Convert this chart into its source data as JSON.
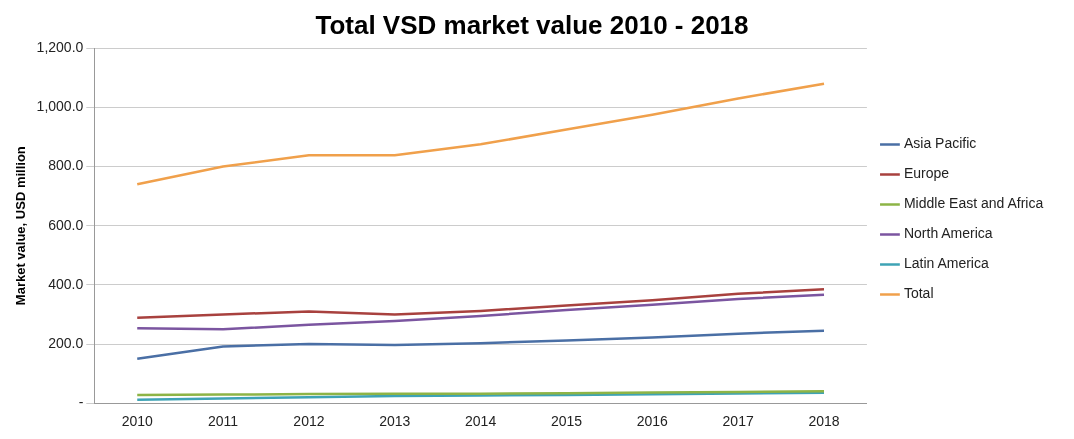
{
  "chart_data": {
    "type": "line",
    "title": "Total VSD market value 2010 - 2018",
    "ylabel": "Market value, USD million",
    "categories": [
      "2010",
      "2011",
      "2012",
      "2013",
      "2014",
      "2015",
      "2016",
      "2017",
      "2018"
    ],
    "series": [
      {
        "name": "Asia Pacific",
        "color": "#4a6fa5",
        "values": [
          150,
          192,
          200,
          197,
          203,
          212,
          222,
          235,
          245
        ]
      },
      {
        "name": "Europe",
        "color": "#a8413e",
        "values": [
          289,
          300,
          310,
          300,
          312,
          330,
          348,
          370,
          385
        ]
      },
      {
        "name": "Middle East and Africa",
        "color": "#8db446",
        "values": [
          28,
          29,
          31,
          32,
          32,
          34,
          36,
          38,
          40
        ]
      },
      {
        "name": "North America",
        "color": "#7b55a0",
        "values": [
          253,
          250,
          265,
          278,
          295,
          315,
          333,
          352,
          367
        ]
      },
      {
        "name": "Latin America",
        "color": "#3ea3b5",
        "values": [
          12,
          16,
          20,
          24,
          26,
          28,
          30,
          33,
          35
        ]
      },
      {
        "name": "Total",
        "color": "#f0a04b",
        "values": [
          740,
          800,
          838,
          838,
          875,
          925,
          975,
          1030,
          1080
        ]
      }
    ],
    "ylim": [
      0,
      1200
    ],
    "yticks": [
      {
        "value": 0,
        "label": "-"
      },
      {
        "value": 200,
        "label": "200.0"
      },
      {
        "value": 400,
        "label": "400.0"
      },
      {
        "value": 600,
        "label": "600.0"
      },
      {
        "value": 800,
        "label": "800.0"
      },
      {
        "value": 1000,
        "label": "1,000.0"
      },
      {
        "value": 1200,
        "label": "1,200.0"
      }
    ],
    "grid": "y",
    "legend": "right",
    "marker": "none",
    "line_style": "solid"
  }
}
